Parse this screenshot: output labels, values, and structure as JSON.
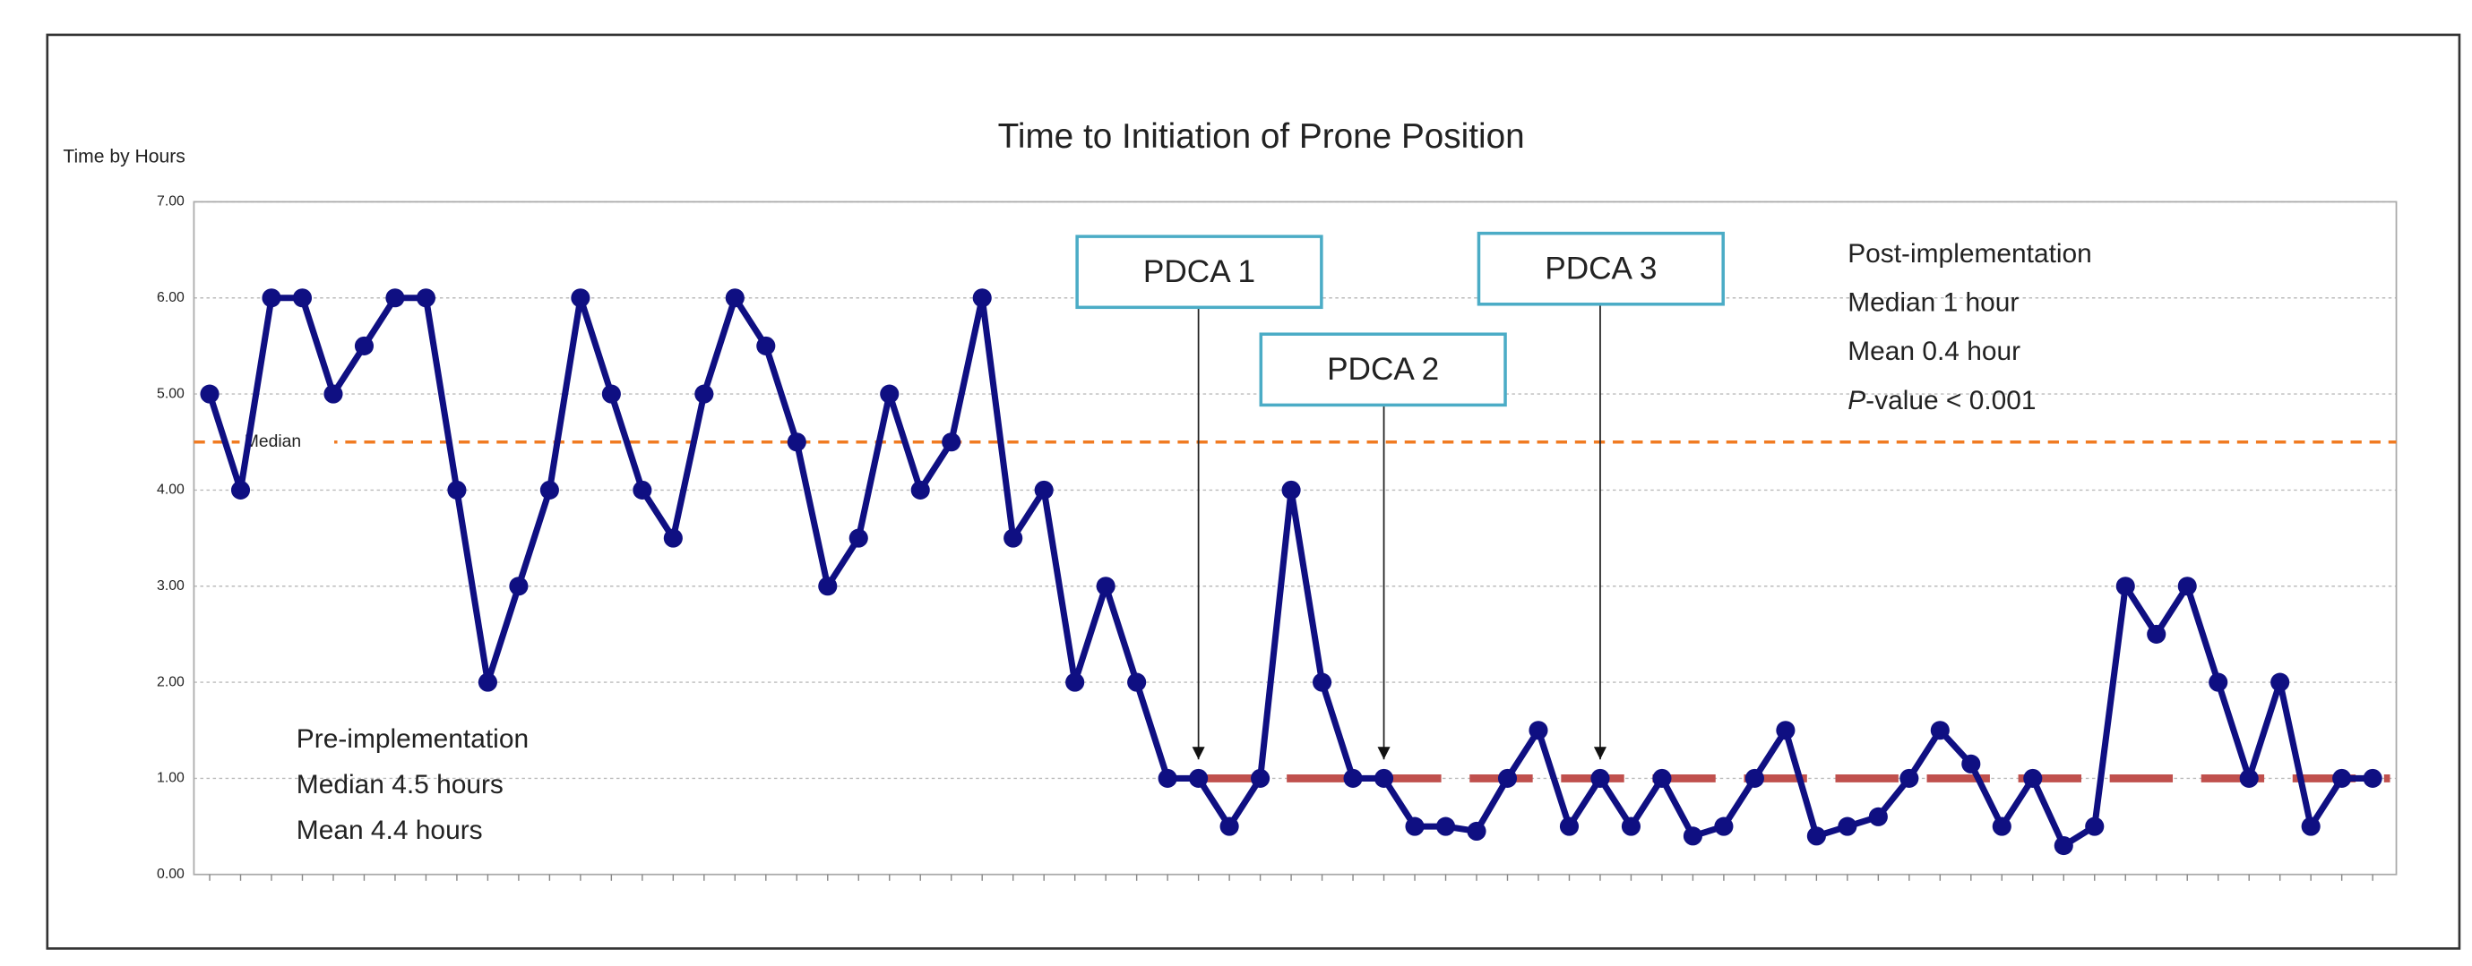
{
  "chart_data": {
    "type": "line",
    "title": "Time to Initiation of Prone Position",
    "y_label": "Time by Hours",
    "categories": [
      null,
      null,
      null,
      null,
      null,
      null,
      null,
      null,
      null,
      null,
      null,
      null,
      null,
      null,
      null,
      null,
      null,
      null,
      null,
      null,
      null,
      null,
      null,
      null,
      null,
      null,
      null,
      null,
      null,
      null,
      null,
      null,
      null,
      null,
      null,
      null,
      null,
      null,
      null,
      null,
      null,
      null,
      null,
      null,
      null,
      null,
      null,
      null,
      null,
      null,
      null,
      null,
      null,
      null,
      null,
      null,
      null,
      null,
      null,
      null,
      null,
      null,
      null,
      null,
      null,
      null,
      null,
      null,
      null,
      null,
      null
    ],
    "series": [
      {
        "color": "#0f0f82",
        "values": [
          5.0,
          4.0,
          6.0,
          6.0,
          5.0,
          5.5,
          6.0,
          6.0,
          4.0,
          2.0,
          3.0,
          4.0,
          6.0,
          5.0,
          4.0,
          3.5,
          5.0,
          6.0,
          5.5,
          4.5,
          3.0,
          3.5,
          5.0,
          4.0,
          4.5,
          6.0,
          3.5,
          4.0,
          2.0,
          3.0,
          2.0,
          1.0,
          1.0,
          0.5,
          1.0,
          4.0,
          2.0,
          1.0,
          1.0,
          0.5,
          0.5,
          0.45,
          1.0,
          1.5,
          0.5,
          1.0,
          0.5,
          1.0,
          0.4,
          0.5,
          1.0,
          1.5,
          0.4,
          0.5,
          0.6,
          1.0,
          1.5,
          1.15,
          0.5,
          1.0,
          0.3,
          0.5,
          3.0,
          2.5,
          3.0,
          2.0,
          1.0,
          2.0,
          0.5,
          1.0,
          1.0
        ]
      }
    ],
    "ylim": [
      0,
      7
    ],
    "yticks": [
      {
        "value": 0,
        "label": "0.00"
      },
      {
        "value": 1,
        "label": "1.00"
      },
      {
        "value": 2,
        "label": "2.00"
      },
      {
        "value": 3,
        "label": "3.00"
      },
      {
        "value": 4,
        "label": "4.00"
      },
      {
        "value": 5,
        "label": "5.00"
      },
      {
        "value": 6,
        "label": "6.00"
      },
      {
        "value": 7,
        "label": "7.00"
      }
    ],
    "grid": true,
    "reference_lines": [
      {
        "value": 4.5,
        "color": "#f07b22",
        "label": "Median",
        "label_color": "#e8382a"
      },
      {
        "value": 1,
        "color": "#c0504d",
        "start_index": 32
      }
    ],
    "annotations": [
      {
        "text": "PDCA 1",
        "index": 32
      },
      {
        "text": "PDCA 2",
        "index": 38
      },
      {
        "text": "PDCA 3",
        "index": 45
      }
    ],
    "notes": {
      "post": [
        "Post-implementation",
        "Median 1 hour",
        "Mean 0.4 hour"
      ],
      "post_p": {
        "italic": "P",
        "text": "-value < 0.001"
      },
      "pre": [
        "Pre-implementation",
        "Median 4.5 hours",
        "Mean 4.4 hours"
      ]
    }
  }
}
